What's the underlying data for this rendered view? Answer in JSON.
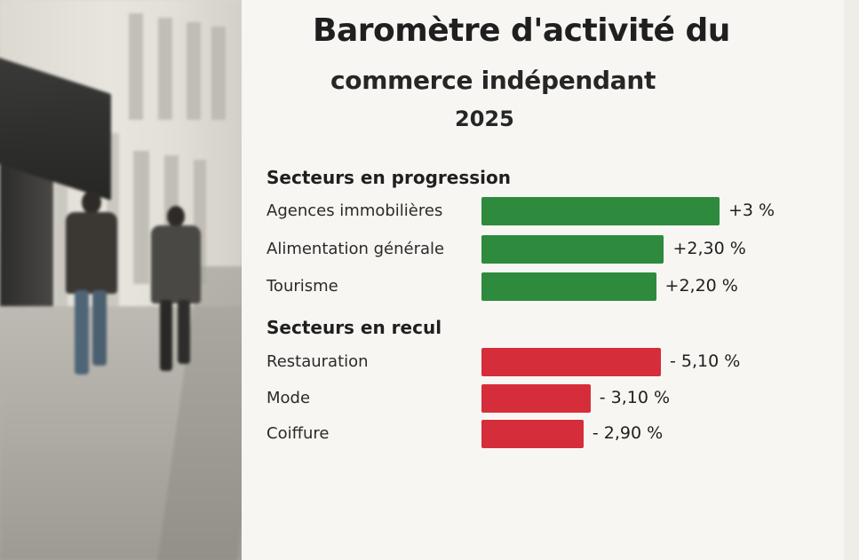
{
  "title": {
    "line1": "Baromètre d'activité du",
    "line2": "commerce indépendant",
    "line3": "2025"
  },
  "colors": {
    "positive": "#2e8b3e",
    "negative": "#d62d3a"
  },
  "chart_data": {
    "type": "bar",
    "orientation": "horizontal",
    "groups": [
      {
        "name": "Secteurs en progression",
        "categories": [
          "Agences immobilières",
          "Alimentation générale",
          "Tourisme"
        ],
        "values": [
          3,
          2.3,
          2.2
        ],
        "value_labels": [
          "+3 %",
          "+2,30 %",
          "+2,20 %"
        ]
      },
      {
        "name": "Secteurs en recul",
        "categories": [
          "Restauration",
          "Mode",
          "Coiffure"
        ],
        "values": [
          -5.1,
          -3.1,
          -2.9
        ],
        "value_labels": [
          "- 5,10 %",
          "- 3,10 %",
          "- 2,90 %"
        ]
      }
    ]
  }
}
